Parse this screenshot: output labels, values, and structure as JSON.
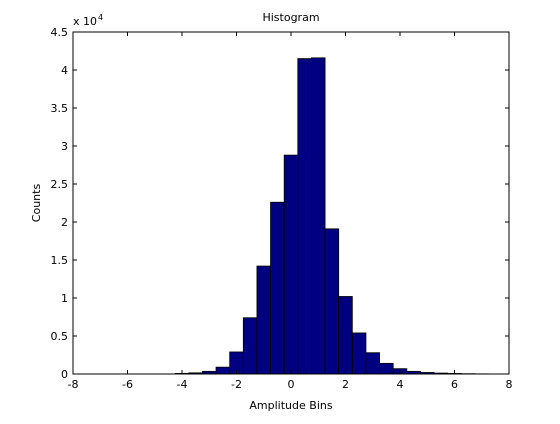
{
  "chart_data": {
    "type": "bar",
    "title": "Histogram",
    "xlabel": "Amplitude Bins",
    "ylabel": "Counts",
    "y_multiplier_base": "x 10",
    "y_multiplier_exponent": "4",
    "xlim": [
      -8,
      8
    ],
    "ylim": [
      0,
      45000
    ],
    "grid": false,
    "bar_color": "#000080",
    "edge_color": "#000000",
    "bin_width": 0.5,
    "x_ticks": [
      -8,
      -6,
      -4,
      -2,
      0,
      2,
      4,
      6,
      8
    ],
    "x_tick_labels": [
      "-8",
      "-6",
      "-4",
      "-2",
      "0",
      "2",
      "4",
      "6",
      "8"
    ],
    "y_ticks": [
      0,
      5000,
      10000,
      15000,
      20000,
      25000,
      30000,
      35000,
      40000,
      45000
    ],
    "y_tick_labels": [
      "0",
      "0.5",
      "1",
      "1.5",
      "2",
      "2.5",
      "3",
      "3.5",
      "4",
      "4.5"
    ],
    "bins": [
      {
        "x": -4.0,
        "value": 80
      },
      {
        "x": -3.5,
        "value": 150
      },
      {
        "x": -3.0,
        "value": 350
      },
      {
        "x": -2.5,
        "value": 900
      },
      {
        "x": -2.0,
        "value": 2900
      },
      {
        "x": -1.5,
        "value": 7400
      },
      {
        "x": -1.0,
        "value": 14200
      },
      {
        "x": -0.5,
        "value": 22600
      },
      {
        "x": 0.0,
        "value": 28800
      },
      {
        "x": 0.5,
        "value": 41500
      },
      {
        "x": 1.0,
        "value": 41600
      },
      {
        "x": 1.5,
        "value": 19100
      },
      {
        "x": 2.0,
        "value": 10200
      },
      {
        "x": 2.5,
        "value": 5400
      },
      {
        "x": 3.0,
        "value": 2800
      },
      {
        "x": 3.5,
        "value": 1400
      },
      {
        "x": 4.0,
        "value": 700
      },
      {
        "x": 4.5,
        "value": 350
      },
      {
        "x": 5.0,
        "value": 200
      },
      {
        "x": 5.5,
        "value": 120
      },
      {
        "x": 6.0,
        "value": 70
      },
      {
        "x": 6.5,
        "value": 40
      },
      {
        "x": 7.0,
        "value": 20
      }
    ]
  }
}
